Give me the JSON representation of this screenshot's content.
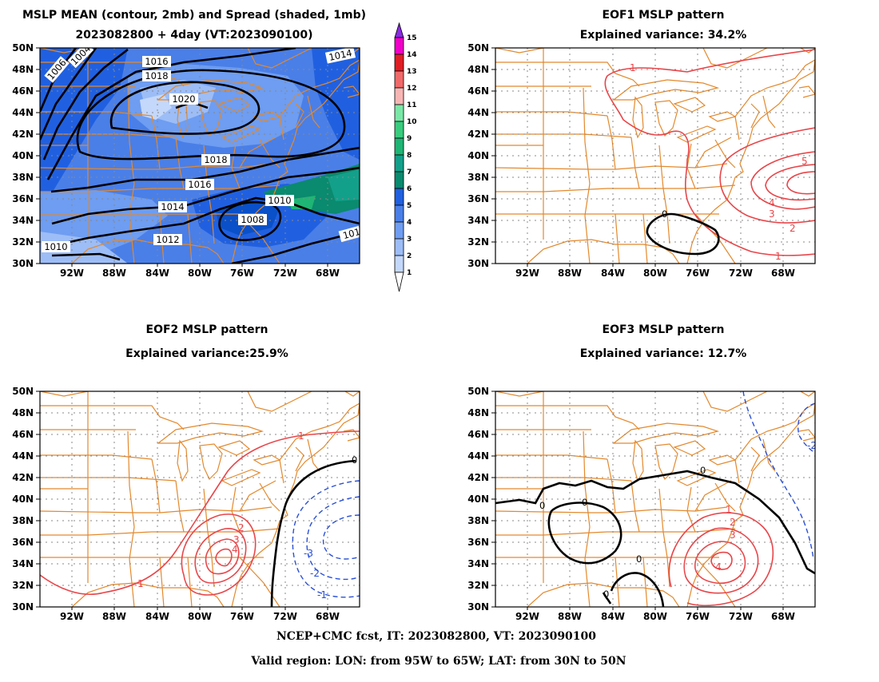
{
  "panels": {
    "p1": {
      "title1": "MSLP MEAN (contour, 2mb) and Spread (shaded, 1mb)",
      "title2": "2023082800 + 4day (VT:2023090100)"
    },
    "p2": {
      "title1": "EOF1 MSLP pattern",
      "title2": "Explained variance: 34.2%"
    },
    "p3": {
      "title1": "EOF2 MSLP pattern",
      "title2": "Explained variance:25.9%"
    },
    "p4": {
      "title1": "EOF3 MSLP pattern",
      "title2": "Explained variance: 12.7%"
    }
  },
  "axes": {
    "lat_labels": [
      "30N",
      "32N",
      "34N",
      "36N",
      "38N",
      "40N",
      "42N",
      "44N",
      "46N",
      "48N",
      "50N"
    ],
    "lon_labels": [
      "92W",
      "88W",
      "84W",
      "80W",
      "76W",
      "72W",
      "68W"
    ]
  },
  "colorbar": {
    "labels": [
      "1",
      "2",
      "3",
      "4",
      "5",
      "6",
      "7",
      "8",
      "9",
      "10",
      "11",
      "12",
      "13",
      "14",
      "15"
    ],
    "colors": [
      "#c4d8fb",
      "#9dbdf7",
      "#6e9df1",
      "#4a7fe8",
      "#2060e0",
      "#0a8a6e",
      "#13a08a",
      "#1fb574",
      "#39cc7f",
      "#7be8a8",
      "#f7b6b4",
      "#f06a6a",
      "#e01e24",
      "#f000c8",
      "#8a2be2"
    ]
  },
  "mean_contours": {
    "labels": [
      "1004",
      "1006",
      "1008",
      "1010",
      "1012",
      "1014",
      "1016",
      "1018",
      "1020"
    ]
  },
  "eof_labels": {
    "eof1": [
      "1",
      "0",
      "1",
      "2",
      "3",
      "4",
      "5"
    ],
    "eof2": [
      "0",
      "1",
      "2",
      "3",
      "4",
      "1",
      "-1",
      "-2",
      "-3"
    ],
    "eof3": [
      "0",
      "0",
      "0",
      "0",
      "0",
      "1",
      "2",
      "3",
      "4",
      "-2"
    ]
  },
  "footer": {
    "line1": "NCEP+CMC fcst, IT: 2023082800, VT: 2023090100",
    "line2": "Valid region: LON: from 95W to 65W; LAT: from 30N to 50N"
  }
}
